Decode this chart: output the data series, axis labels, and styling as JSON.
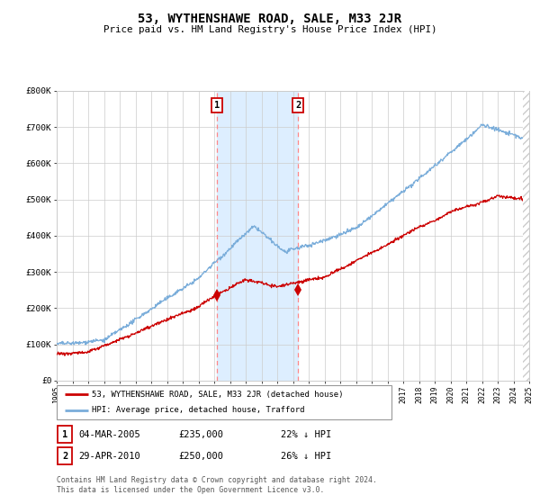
{
  "title": "53, WYTHENSHAWE ROAD, SALE, M33 2JR",
  "subtitle": "Price paid vs. HM Land Registry's House Price Index (HPI)",
  "legend_line1": "53, WYTHENSHAWE ROAD, SALE, M33 2JR (detached house)",
  "legend_line2": "HPI: Average price, detached house, Trafford",
  "transaction1_date": "04-MAR-2005",
  "transaction1_price": 235000,
  "transaction1_hpi": "22% ↓ HPI",
  "transaction2_date": "29-APR-2010",
  "transaction2_price": 250000,
  "transaction2_hpi": "26% ↓ HPI",
  "footer": "Contains HM Land Registry data © Crown copyright and database right 2024.\nThis data is licensed under the Open Government Licence v3.0.",
  "hpi_color": "#7aadda",
  "price_color": "#cc0000",
  "marker_color": "#cc0000",
  "background_color": "#ffffff",
  "grid_color": "#cccccc",
  "shade_color": "#ddeeff",
  "vline_color": "#ff8888",
  "hatch_color": "#cccccc",
  "year_start": 1995,
  "year_end": 2025,
  "ylim_max": 800000,
  "transaction1_year": 2005.17,
  "transaction2_year": 2010.33
}
